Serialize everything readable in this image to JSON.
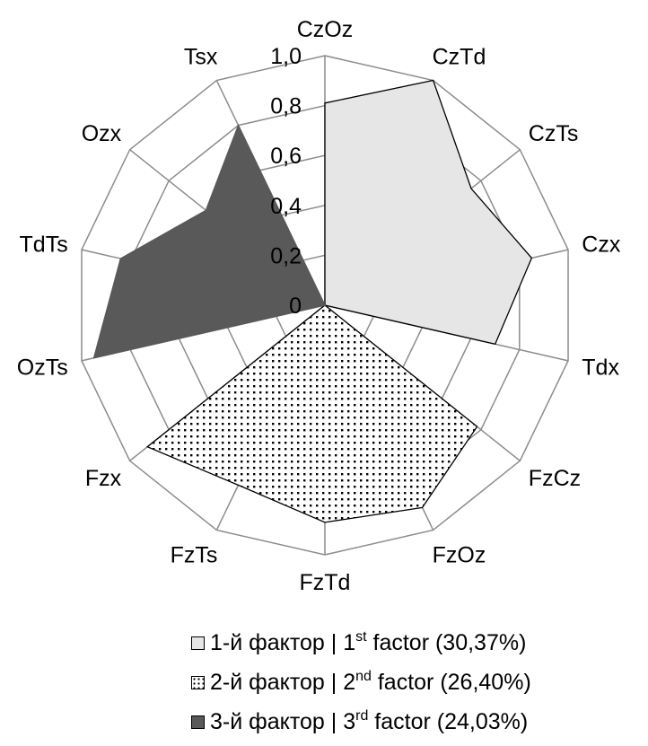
{
  "chart_data": {
    "type": "radar",
    "axes": [
      "CzOz",
      "CzTd",
      "CzTs",
      "Czx",
      "Tdx",
      "FzCz",
      "FzOz",
      "FzTd",
      "FzTs",
      "Fzx",
      "OzTs",
      "TdTs",
      "Ozx",
      "Tsx"
    ],
    "rlim": [
      0,
      1.0
    ],
    "ticks": [
      "0",
      "0,2",
      "0,4",
      "0,6",
      "0,8",
      "1,0"
    ],
    "tick_values": [
      0,
      0.2,
      0.4,
      0.6,
      0.8,
      1.0
    ],
    "series": [
      {
        "name": "1-й фактор | 1st factor (30,37%)",
        "fill": "#e6e6e6",
        "pattern": "solid",
        "values": [
          0.81,
          1.0,
          0.75,
          0.85,
          0.7,
          0,
          0,
          0,
          0,
          0,
          0,
          0,
          0,
          0
        ]
      },
      {
        "name": "2-й фактор | 2nd factor (26,40%)",
        "fill": "#ffffff",
        "pattern": "dots",
        "values": [
          0,
          0,
          0,
          0,
          0,
          0.78,
          0.9,
          0.87,
          0.8,
          0.91,
          0,
          0,
          0,
          0
        ]
      },
      {
        "name": "3-й фактор | 3rd factor (24,03%)",
        "fill": "#595959",
        "pattern": "solid",
        "values": [
          0,
          0,
          0,
          0,
          0,
          0,
          0,
          0,
          0,
          0,
          0.95,
          0.84,
          0.61,
          0.8
        ]
      }
    ],
    "legend_position": "bottom",
    "legend": [
      {
        "pre": "1-й фактор | 1",
        "sup": "st",
        "post": " factor (30,37%)"
      },
      {
        "pre": "2-й фактор | 2",
        "sup": "nd",
        "post": " factor (26,40%)"
      },
      {
        "pre": "3-й фактор | 3",
        "sup": "rd",
        "post": " factor (24,03%)"
      }
    ]
  }
}
